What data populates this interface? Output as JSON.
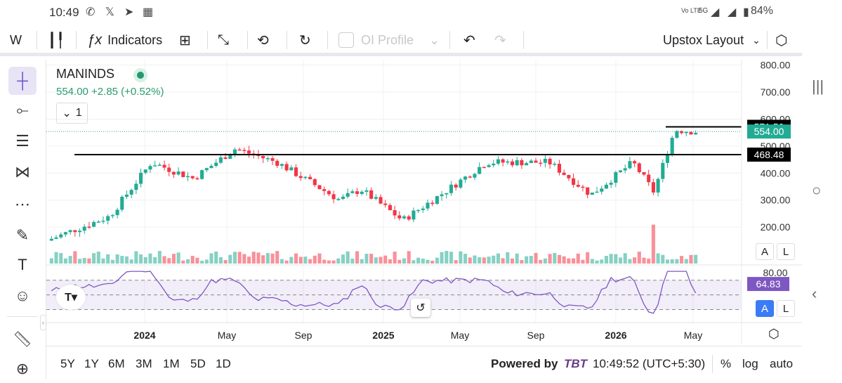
{
  "status": {
    "time": "10:49",
    "battery": "84%",
    "network": "5G",
    "carrier_badge": "Vo LTE"
  },
  "toolbar": {
    "interval": "W",
    "indicators_label": "Indicators",
    "oi_profile_label": "OI Profile",
    "layout_label": "Upstox Layout"
  },
  "symbol": {
    "name": "MANINDS",
    "price_line": "554.00 +2.85 (+0.52%)",
    "pane_count": "1"
  },
  "price_scale": {
    "ticks": [
      "800.00",
      "700.00",
      "600.00",
      "500.00",
      "400.00",
      "300.00",
      "200.00"
    ],
    "labels": {
      "high_line": "571.50",
      "last": "554.00",
      "support_line": "468.48"
    }
  },
  "rsi": {
    "top_tick": "80.00",
    "value": "64.83"
  },
  "time_axis": [
    "2024",
    "May",
    "Sep",
    "2025",
    "May",
    "Sep",
    "2026",
    "May"
  ],
  "volume_scale_buttons": {
    "a": "A",
    "l": "L"
  },
  "rsi_scale_buttons": {
    "a": "A",
    "l": "L"
  },
  "bottom": {
    "ranges": [
      "5Y",
      "1Y",
      "6M",
      "3M",
      "1M",
      "5D",
      "1D"
    ],
    "powered_by": "Powered by",
    "brand": "TBT",
    "clock": "10:49:52 (UTC+5:30)",
    "percent": "%",
    "log": "log",
    "auto": "auto"
  },
  "colors": {
    "up": "#22ab94",
    "down": "#f23645",
    "rsi": "#7e57c2",
    "accent": "#3b7bf6"
  },
  "chart_data": {
    "type": "candlestick",
    "symbol": "MANINDS",
    "interval": "W",
    "y_range": [
      130,
      820
    ],
    "x_range": [
      "2023-10",
      "2026-05"
    ],
    "approx_close_path": [
      {
        "x": "2023-10",
        "y": 150
      },
      {
        "x": "2024-01",
        "y": 240
      },
      {
        "x": "2024-03",
        "y": 440
      },
      {
        "x": "2024-05",
        "y": 380
      },
      {
        "x": "2024-07",
        "y": 490
      },
      {
        "x": "2024-09",
        "y": 440
      },
      {
        "x": "2024-12",
        "y": 300
      },
      {
        "x": "2025-01",
        "y": 340
      },
      {
        "x": "2025-03",
        "y": 225
      },
      {
        "x": "2025-05",
        "y": 330
      },
      {
        "x": "2025-07",
        "y": 440
      },
      {
        "x": "2025-10",
        "y": 440
      },
      {
        "x": "2025-12",
        "y": 320
      },
      {
        "x": "2026-02",
        "y": 440
      },
      {
        "x": "2026-03",
        "y": 330
      },
      {
        "x": "2026-04",
        "y": 560
      },
      {
        "x": "2026-05",
        "y": 554
      }
    ],
    "horizontal_lines": [
      571.5,
      468.48
    ],
    "last_price": 554.0,
    "rsi": {
      "value": 64.83,
      "upper": 70,
      "lower": 30
    }
  }
}
